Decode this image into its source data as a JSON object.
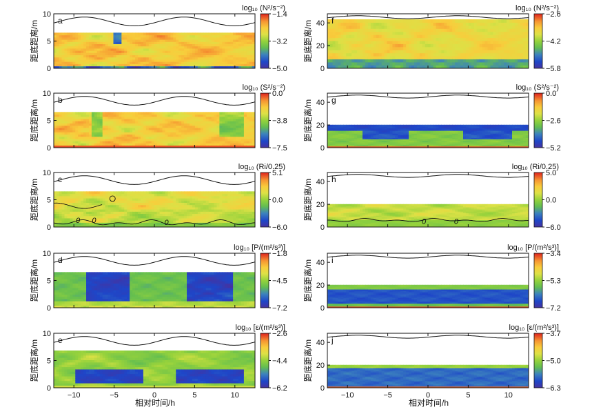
{
  "figure": {
    "x_label": "相对时间/h",
    "y_label": "距底距离/m"
  },
  "chart_data": [
    {
      "type": "heatmap",
      "panel": "a",
      "column": "left",
      "title": "log₁₀ (N²/s⁻²)",
      "cbar_ticks": [
        "−1.4",
        "−3.2",
        "−5.0"
      ],
      "cbar_range": [
        -5.0,
        -1.4
      ],
      "ylim": [
        0,
        10
      ],
      "yticks": [
        0,
        5,
        10
      ],
      "xlim": [
        -12.5,
        12.5
      ],
      "xticks": [
        -10,
        -5,
        0,
        5,
        10
      ],
      "data_top": 6.5,
      "surface_mean": 8.6,
      "surface_amp": 0.8,
      "character": "stratified-warm"
    },
    {
      "type": "heatmap",
      "panel": "b",
      "column": "left",
      "title": "log₁₀ (S²/s⁻²)",
      "cbar_ticks": [
        "0.0",
        "−3.8",
        "−7.5"
      ],
      "cbar_range": [
        -7.5,
        0.0
      ],
      "ylim": [
        0,
        10
      ],
      "yticks": [
        0,
        5,
        10
      ],
      "xlim": [
        -12.5,
        12.5
      ],
      "xticks": [
        -10,
        -5,
        0,
        5,
        10
      ],
      "data_top": 6.5,
      "surface_mean": 8.6,
      "surface_amp": 0.8,
      "character": "shear-warm"
    },
    {
      "type": "heatmap",
      "panel": "c",
      "column": "left",
      "title": "log₁₀ (Ri/0.25)",
      "cbar_ticks": [
        "5.1",
        "0.0",
        "−6.0"
      ],
      "cbar_range": [
        -6.0,
        5.1
      ],
      "ylim": [
        0,
        10
      ],
      "yticks": [
        0,
        5,
        10
      ],
      "xlim": [
        -12.5,
        12.5
      ],
      "xticks": [
        -10,
        -5,
        0,
        5,
        10
      ],
      "data_top": 6.5,
      "surface_mean": 8.6,
      "surface_amp": 0.8,
      "contour_label": "0",
      "character": "richardson"
    },
    {
      "type": "heatmap",
      "panel": "d",
      "column": "left",
      "title": "log₁₀ [P/(m²/s³)]",
      "cbar_ticks": [
        "−1.8",
        "−4.5",
        "−7.2"
      ],
      "cbar_range": [
        -7.2,
        -1.8
      ],
      "ylim": [
        0,
        10
      ],
      "yticks": [
        0,
        5,
        10
      ],
      "xlim": [
        -12.5,
        12.5
      ],
      "xticks": [
        -10,
        -5,
        0,
        5,
        10
      ],
      "data_top": 6.5,
      "surface_mean": 8.6,
      "surface_amp": 0.8,
      "character": "production-blobs"
    },
    {
      "type": "heatmap",
      "panel": "e",
      "column": "left",
      "title": "log₁₀ [ε/(m²/s³)]",
      "cbar_ticks": [
        "−2.6",
        "−4.4",
        "−6.2"
      ],
      "cbar_range": [
        -6.2,
        -2.6
      ],
      "ylim": [
        0,
        10
      ],
      "yticks": [
        0,
        5,
        10
      ],
      "xlim": [
        -12.5,
        12.5
      ],
      "xticks": [
        -10,
        -5,
        0,
        5,
        10
      ],
      "data_top": 6.8,
      "surface_mean": 8.6,
      "surface_amp": 0.8,
      "character": "dissipation-band"
    },
    {
      "type": "heatmap",
      "panel": "f",
      "column": "right",
      "title": "log₁₀ (N²/s⁻²)",
      "cbar_ticks": [
        "−2.6",
        "−4.2",
        "−5.8"
      ],
      "cbar_range": [
        -5.8,
        -2.6
      ],
      "ylim": [
        0,
        48
      ],
      "yticks": [
        0,
        20,
        40
      ],
      "xlim": [
        -12.5,
        12.5
      ],
      "xticks": [
        -10,
        -5,
        0,
        5,
        10
      ],
      "data_top": 43,
      "surface_mean": 45,
      "surface_amp": 1.3,
      "character": "deep-stratified"
    },
    {
      "type": "heatmap",
      "panel": "g",
      "column": "right",
      "title": "log₁₀ (S²/s⁻²)",
      "cbar_ticks": [
        "0.0",
        "−2.6",
        "−5.2"
      ],
      "cbar_range": [
        -5.2,
        0.0
      ],
      "ylim": [
        0,
        48
      ],
      "yticks": [
        0,
        20,
        40
      ],
      "xlim": [
        -12.5,
        12.5
      ],
      "xticks": [
        -10,
        -5,
        0,
        5,
        10
      ],
      "data_top": 20,
      "surface_mean": 45,
      "surface_amp": 1.3,
      "character": "deep-shear"
    },
    {
      "type": "heatmap",
      "panel": "h",
      "column": "right",
      "title": "log₁₀ (Ri/0.25)",
      "cbar_ticks": [
        "5.0",
        "0.0",
        "−6.0"
      ],
      "cbar_range": [
        -6.0,
        5.0
      ],
      "ylim": [
        0,
        48
      ],
      "yticks": [
        0,
        20,
        40
      ],
      "xlim": [
        -12.5,
        12.5
      ],
      "xticks": [
        -10,
        -5,
        0,
        5,
        10
      ],
      "data_top": 20,
      "surface_mean": 45,
      "surface_amp": 1.3,
      "contour_label": "0",
      "character": "deep-richardson"
    },
    {
      "type": "heatmap",
      "panel": "i",
      "column": "right",
      "title": "log₁₀ [P/(m²/s³)]",
      "cbar_ticks": [
        "−3.4",
        "−5.3",
        "−7.2"
      ],
      "cbar_range": [
        -7.2,
        -3.4
      ],
      "ylim": [
        0,
        48
      ],
      "yticks": [
        0,
        20,
        40
      ],
      "xlim": [
        -12.5,
        12.5
      ],
      "xticks": [
        -10,
        -5,
        0,
        5,
        10
      ],
      "data_top": 20,
      "surface_mean": 45,
      "surface_amp": 1.3,
      "character": "deep-production"
    },
    {
      "type": "heatmap",
      "panel": "j",
      "column": "right",
      "title": "log₁₀ [ε/(m²/s³)]",
      "cbar_ticks": [
        "−3.7",
        "−5.0",
        "−6.3"
      ],
      "cbar_range": [
        -6.3,
        -3.7
      ],
      "ylim": [
        0,
        48
      ],
      "yticks": [
        0,
        20,
        40
      ],
      "xlim": [
        -12.5,
        12.5
      ],
      "xticks": [
        -10,
        -5,
        0,
        5,
        10
      ],
      "data_top": 20,
      "surface_mean": 45,
      "surface_amp": 1.3,
      "character": "deep-dissipation"
    }
  ]
}
